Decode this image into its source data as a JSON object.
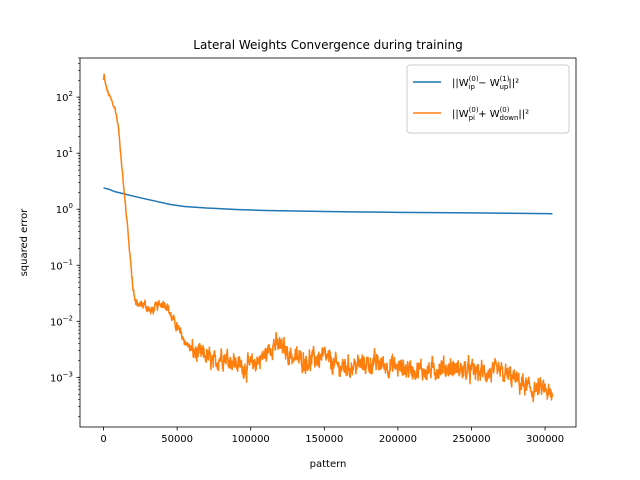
{
  "chart_data": {
    "type": "line",
    "title": "Lateral Weights Convergence during training",
    "xlabel": "pattern",
    "ylabel": "squared error",
    "xlim": [
      -16000,
      321000
    ],
    "ylim": [
      0.00013,
      500
    ],
    "yscale": "log",
    "grid": false,
    "legend_position": "top-right",
    "x_ticks": [
      {
        "value": 0,
        "label": "0"
      },
      {
        "value": 50000,
        "label": "50000"
      },
      {
        "value": 100000,
        "label": "100000"
      },
      {
        "value": 150000,
        "label": "150000"
      },
      {
        "value": 200000,
        "label": "200000"
      },
      {
        "value": 250000,
        "label": "250000"
      },
      {
        "value": 300000,
        "label": "300000"
      }
    ],
    "y_ticks": [
      {
        "value": 0.001,
        "base": "10",
        "exp": "−3"
      },
      {
        "value": 0.01,
        "base": "10",
        "exp": "−2"
      },
      {
        "value": 0.1,
        "base": "10",
        "exp": "−1"
      },
      {
        "value": 1,
        "base": "10",
        "exp": "0"
      },
      {
        "value": 10,
        "base": "10",
        "exp": "1"
      },
      {
        "value": 100,
        "base": "10",
        "exp": "2"
      }
    ],
    "series": [
      {
        "name_parts": {
          "pre": "||W",
          "sup1": "(0)",
          "sub1": "ip",
          "mid": " − W",
          "sup2": "(1)",
          "sub2": "up",
          "post": "||²"
        },
        "color": "#1f77b4",
        "noise": false,
        "x": [
          0,
          3000,
          8000,
          15000,
          25000,
          35000,
          45000,
          55000,
          70000,
          90000,
          110000,
          130000,
          150000,
          175000,
          200000,
          225000,
          250000,
          275000,
          300000,
          305000
        ],
        "y": [
          2.4,
          2.3,
          2.05,
          1.85,
          1.6,
          1.4,
          1.22,
          1.12,
          1.05,
          0.99,
          0.95,
          0.93,
          0.91,
          0.895,
          0.88,
          0.87,
          0.86,
          0.85,
          0.835,
          0.83
        ]
      },
      {
        "name_parts": {
          "pre": "||W",
          "sup1": "(0)",
          "sub1": "pi",
          "mid": " + W",
          "sup2": "(0)",
          "sub2": "down",
          "post": "||²"
        },
        "color": "#ff7f0e",
        "noise": true,
        "x": [
          0,
          500,
          1000,
          3000,
          6000,
          8000,
          10000,
          12000,
          14000,
          16000,
          18000,
          20000,
          22000,
          25000,
          28000,
          32000,
          36000,
          40000,
          43000,
          46000,
          50000,
          55000,
          60000,
          65000,
          70000,
          75000,
          80000,
          85000,
          90000,
          95000,
          100000,
          110000,
          115000,
          120000,
          125000,
          130000,
          140000,
          150000,
          155000,
          160000,
          170000,
          180000,
          190000,
          200000,
          210000,
          220000,
          230000,
          240000,
          250000,
          260000,
          270000,
          280000,
          290000,
          300000,
          305000
        ],
        "y": [
          200,
          250,
          180,
          120,
          80,
          60,
          30,
          8,
          2,
          0.6,
          0.15,
          0.04,
          0.02,
          0.019,
          0.02,
          0.015,
          0.018,
          0.022,
          0.02,
          0.012,
          0.008,
          0.0045,
          0.003,
          0.0025,
          0.0024,
          0.0017,
          0.0025,
          0.0022,
          0.0018,
          0.0015,
          0.0016,
          0.0025,
          0.004,
          0.0035,
          0.0028,
          0.0022,
          0.002,
          0.0023,
          0.0018,
          0.0015,
          0.0016,
          0.0018,
          0.0017,
          0.0015,
          0.0014,
          0.0013,
          0.0015,
          0.0014,
          0.0013,
          0.0012,
          0.0012,
          0.0009,
          0.0006,
          0.0006,
          0.0004
        ]
      }
    ]
  }
}
